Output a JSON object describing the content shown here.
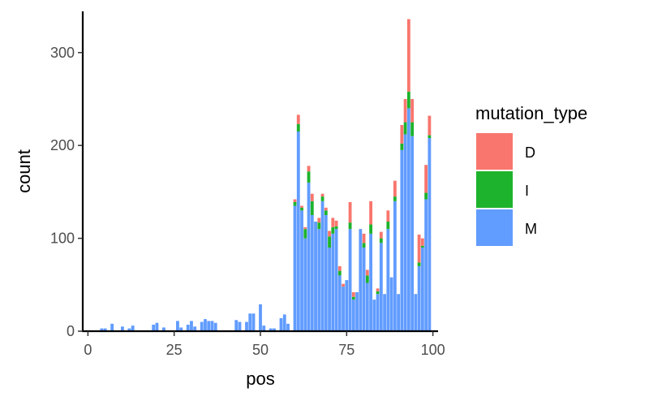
{
  "chart_data": {
    "type": "bar",
    "stacked": true,
    "xlabel": "pos",
    "ylabel": "count",
    "xlim": [
      -1.5,
      101.5
    ],
    "ylim": [
      0,
      340
    ],
    "xticks": [
      0,
      25,
      50,
      75,
      100
    ],
    "yticks": [
      0,
      100,
      200,
      300
    ],
    "grid": false,
    "legend": {
      "title": "mutation_type",
      "position": "right",
      "entries": [
        {
          "label": "D",
          "color": "#F8766D"
        },
        {
          "label": "I",
          "color": "#1DB32C"
        },
        {
          "label": "M",
          "color": "#619CFF"
        }
      ]
    },
    "x": [
      4,
      5,
      7,
      10,
      12,
      13,
      19,
      20,
      22,
      26,
      27,
      29,
      30,
      31,
      33,
      34,
      35,
      36,
      37,
      43,
      44,
      46,
      47,
      48,
      50,
      51,
      53,
      54,
      56,
      57,
      58,
      60,
      61,
      62,
      63,
      64,
      65,
      66,
      67,
      68,
      69,
      70,
      71,
      72,
      73,
      74,
      75,
      76,
      77,
      78,
      79,
      80,
      81,
      82,
      83,
      84,
      85,
      86,
      87,
      88,
      89,
      90,
      91,
      92,
      93,
      94,
      95,
      96,
      97,
      98,
      99
    ],
    "series": [
      {
        "name": "M",
        "color": "#619CFF",
        "values": [
          3,
          3,
          8,
          5,
          3,
          6,
          7,
          9,
          4,
          11,
          4,
          7,
          11,
          5,
          10,
          13,
          11,
          11,
          9,
          12,
          10,
          10,
          19,
          19,
          29,
          6,
          3,
          3,
          14,
          18,
          8,
          135,
          215,
          130,
          100,
          160,
          125,
          118,
          110,
          140,
          125,
          90,
          105,
          110,
          60,
          48,
          55,
          110,
          34,
          42,
          110,
          90,
          52,
          105,
          34,
          40,
          95,
          40,
          110,
          58,
          140,
          40,
          195,
          212,
          240,
          210,
          40,
          70,
          90,
          142,
          208
        ],
        "colors": []
      },
      {
        "name": "I",
        "color": "#1DB32C",
        "values": [
          0,
          0,
          0,
          0,
          0,
          0,
          0,
          0,
          0,
          0,
          0,
          0,
          0,
          0,
          0,
          0,
          0,
          0,
          0,
          0,
          0,
          0,
          0,
          0,
          0,
          0,
          0,
          0,
          0,
          0,
          0,
          4,
          8,
          3,
          10,
          12,
          15,
          0,
          7,
          5,
          5,
          12,
          7,
          3,
          5,
          0,
          0,
          7,
          3,
          0,
          0,
          5,
          8,
          10,
          0,
          3,
          5,
          0,
          8,
          0,
          5,
          0,
          7,
          13,
          18,
          15,
          0,
          4,
          2,
          7,
          3
        ]
      },
      {
        "name": "D",
        "color": "#F8766D",
        "values": [
          0,
          0,
          0,
          0,
          0,
          0,
          0,
          0,
          0,
          0,
          0,
          0,
          0,
          0,
          0,
          0,
          0,
          0,
          0,
          0,
          0,
          0,
          0,
          0,
          0,
          0,
          0,
          0,
          0,
          0,
          0,
          3,
          10,
          2,
          2,
          6,
          8,
          0,
          5,
          3,
          3,
          6,
          10,
          6,
          5,
          3,
          0,
          22,
          5,
          0,
          0,
          10,
          6,
          25,
          0,
          3,
          7,
          0,
          12,
          0,
          17,
          0,
          20,
          25,
          78,
          25,
          0,
          30,
          8,
          30,
          21
        ]
      }
    ]
  }
}
